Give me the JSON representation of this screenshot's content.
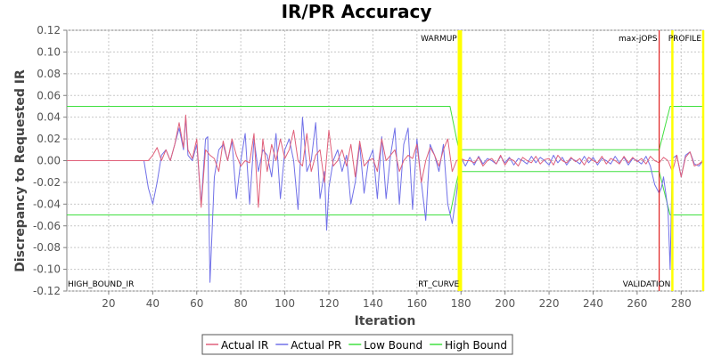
{
  "chart_data": {
    "type": "line",
    "title": "IR/PR Accuracy",
    "xlabel": "Iteration",
    "ylabel": "Discrepancy to Requested IR",
    "xlim": [
      1,
      290
    ],
    "ylim": [
      -0.12,
      0.12
    ],
    "xticks": [
      20,
      40,
      60,
      80,
      100,
      120,
      140,
      160,
      180,
      200,
      220,
      240,
      260,
      280
    ],
    "yticks": [
      -0.12,
      -0.1,
      -0.08,
      -0.06,
      -0.04,
      -0.02,
      0.0,
      0.02,
      0.04,
      0.06,
      0.08,
      0.1,
      0.12
    ],
    "xtick_labels": [
      "20",
      "40",
      "60",
      "80",
      "100",
      "120",
      "140",
      "160",
      "180",
      "200",
      "220",
      "240",
      "260",
      "280"
    ],
    "ytick_labels": [
      "-0.12",
      "-0.10",
      "-0.08",
      "-0.06",
      "-0.04",
      "-0.02",
      "0.00",
      "0.02",
      "0.04",
      "0.06",
      "0.08",
      "0.10",
      "0.12"
    ],
    "grid": true,
    "legend_position": "bottom",
    "series": [
      {
        "name": "Actual IR",
        "color": "#e0607a",
        "x": [
          1,
          36,
          38,
          40,
          42,
          44,
          46,
          48,
          50,
          52,
          54,
          55,
          56,
          58,
          60,
          62,
          64,
          66,
          68,
          70,
          72,
          74,
          76,
          78,
          80,
          82,
          84,
          86,
          88,
          90,
          92,
          94,
          96,
          98,
          100,
          102,
          104,
          106,
          108,
          110,
          112,
          114,
          116,
          118,
          120,
          122,
          124,
          126,
          128,
          130,
          132,
          134,
          136,
          138,
          140,
          142,
          144,
          146,
          148,
          150,
          152,
          154,
          156,
          158,
          160,
          162,
          164,
          166,
          168,
          170,
          172,
          174,
          176,
          178,
          180,
          182,
          184,
          186,
          188,
          190,
          192,
          194,
          196,
          198,
          200,
          202,
          204,
          206,
          208,
          210,
          212,
          214,
          216,
          218,
          220,
          222,
          224,
          226,
          228,
          230,
          232,
          234,
          236,
          238,
          240,
          242,
          244,
          246,
          248,
          250,
          252,
          254,
          256,
          258,
          260,
          262,
          264,
          266,
          268,
          270,
          272,
          274,
          276,
          278,
          280,
          282,
          284,
          286,
          288,
          290
        ],
        "y": [
          0,
          0,
          0,
          0.005,
          0.012,
          0,
          0.01,
          0,
          0.015,
          0.035,
          0.012,
          0.042,
          0.01,
          0.002,
          0.02,
          -0.043,
          0.01,
          0.005,
          0.002,
          -0.01,
          0.018,
          0,
          0.02,
          0.005,
          -0.005,
          0,
          -0.002,
          0.025,
          -0.043,
          0.02,
          -0.01,
          0.015,
          0,
          0.02,
          0.002,
          0.01,
          0.028,
          0,
          -0.005,
          0.025,
          -0.01,
          0.005,
          0.01,
          -0.02,
          0.028,
          -0.005,
          0,
          0.01,
          -0.005,
          0.015,
          -0.015,
          0.018,
          -0.005,
          0,
          0.002,
          -0.01,
          0.02,
          0,
          0.005,
          0.01,
          -0.01,
          0,
          0.005,
          0.002,
          0.015,
          -0.02,
          0,
          0.012,
          0.005,
          -0.005,
          0.01,
          0.02,
          -0.01,
          0,
          0.002,
          0,
          0,
          -0.002,
          0.003,
          -0.005,
          0,
          0.002,
          -0.003,
          0.005,
          -0.004,
          0.002,
          0,
          -0.005,
          0.003,
          0,
          -0.002,
          0.004,
          -0.003,
          0.001,
          0.002,
          -0.004,
          0.005,
          0,
          -0.002,
          0.003,
          -0.001,
          0.002,
          -0.004,
          0.003,
          0,
          -0.002,
          0.004,
          -0.003,
          0.002,
          0,
          -0.003,
          0.004,
          -0.002,
          0.003,
          -0.001,
          0.002,
          -0.003,
          0.004,
          0,
          -0.002,
          0.003,
          0,
          -0.01,
          0.005,
          -0.015,
          0.003,
          0.008,
          -0.005,
          -0.003,
          0
        ]
      },
      {
        "name": "Actual PR",
        "color": "#7070e8",
        "x": [
          1,
          36,
          38,
          40,
          42,
          44,
          46,
          48,
          50,
          52,
          54,
          55,
          56,
          58,
          60,
          62,
          64,
          65,
          66,
          68,
          70,
          72,
          74,
          76,
          78,
          80,
          82,
          84,
          86,
          88,
          90,
          92,
          94,
          96,
          98,
          100,
          102,
          104,
          106,
          108,
          110,
          112,
          114,
          116,
          118,
          119,
          120,
          122,
          124,
          126,
          128,
          130,
          132,
          134,
          136,
          138,
          140,
          142,
          144,
          146,
          148,
          150,
          152,
          154,
          156,
          158,
          160,
          162,
          164,
          166,
          168,
          170,
          172,
          174,
          176,
          178,
          180,
          182,
          184,
          186,
          188,
          190,
          192,
          194,
          196,
          198,
          200,
          202,
          204,
          206,
          208,
          210,
          212,
          214,
          216,
          218,
          220,
          222,
          224,
          226,
          228,
          230,
          232,
          234,
          236,
          238,
          240,
          242,
          244,
          246,
          248,
          250,
          252,
          254,
          256,
          258,
          260,
          262,
          264,
          266,
          268,
          270,
          271,
          272,
          274,
          275,
          276,
          278,
          280,
          282,
          284,
          286,
          288,
          290
        ],
        "y": [
          0,
          0,
          -0.025,
          -0.04,
          -0.02,
          0.005,
          0.01,
          0,
          0.015,
          0.03,
          0.01,
          0.04,
          0.005,
          0,
          0.015,
          -0.04,
          0.02,
          0.022,
          -0.112,
          -0.015,
          0.01,
          0.015,
          0,
          0.018,
          -0.035,
          0,
          0.025,
          -0.04,
          0.02,
          -0.01,
          0.01,
          0.005,
          -0.015,
          0.025,
          -0.035,
          0.01,
          0.02,
          0,
          -0.045,
          0.04,
          -0.01,
          0,
          0.035,
          -0.035,
          -0.01,
          -0.064,
          -0.025,
          0,
          0.01,
          -0.01,
          0.005,
          -0.04,
          -0.02,
          0.015,
          -0.03,
          0,
          0.01,
          -0.035,
          0.022,
          -0.035,
          0.005,
          0.03,
          -0.04,
          0.015,
          0.03,
          -0.045,
          0.02,
          -0.02,
          -0.055,
          0.015,
          0.005,
          -0.01,
          0.015,
          -0.04,
          -0.058,
          -0.03,
          0.003,
          -0.005,
          0.003,
          -0.004,
          0.004,
          -0.003,
          0.002,
          0,
          -0.003,
          0.004,
          -0.002,
          0.003,
          -0.004,
          0.002,
          0,
          -0.003,
          0.004,
          -0.002,
          0.003,
          0,
          -0.004,
          0.005,
          -0.002,
          0.003,
          -0.004,
          0.002,
          0,
          -0.003,
          0.004,
          -0.002,
          0.003,
          -0.004,
          0.002,
          0,
          -0.003,
          0.004,
          -0.002,
          0.003,
          -0.004,
          0.002,
          0,
          -0.003,
          0.004,
          -0.005,
          -0.022,
          -0.03,
          -0.025,
          -0.015,
          -0.045,
          -0.1,
          0.002,
          0.005,
          -0.015,
          0.005,
          0.008,
          -0.003,
          -0.005,
          0
        ]
      },
      {
        "name": "Low Bound",
        "color": "#40e040",
        "x": [
          1,
          175,
          179,
          270,
          275,
          290
        ],
        "y": [
          -0.05,
          -0.05,
          -0.01,
          -0.01,
          -0.05,
          -0.05
        ]
      },
      {
        "name": "High Bound",
        "color": "#40e040",
        "x": [
          1,
          175,
          179,
          270,
          275,
          290
        ],
        "y": [
          0.05,
          0.05,
          0.01,
          0.01,
          0.05,
          0.05
        ]
      }
    ],
    "markers": [
      {
        "x": 179,
        "label": "WARMUP",
        "label_pos": "top",
        "color": "#ffff00"
      },
      {
        "x": 180,
        "label": "RT_CURVE",
        "label_pos": "bottom",
        "color": "#ffff00"
      },
      {
        "x": 270,
        "label": "max-jOPS",
        "label_pos": "top",
        "color": "#e02020"
      },
      {
        "x": 276,
        "label": "VALIDATION",
        "label_pos": "bottom",
        "color": "#ffff00"
      },
      {
        "x": 290,
        "label": "PROFILE",
        "label_pos": "top",
        "color": "#ffff00"
      },
      {
        "x": 1,
        "label": "HIGH_BOUND_IR",
        "label_pos": "bottom",
        "color": "#ffff00"
      }
    ]
  }
}
